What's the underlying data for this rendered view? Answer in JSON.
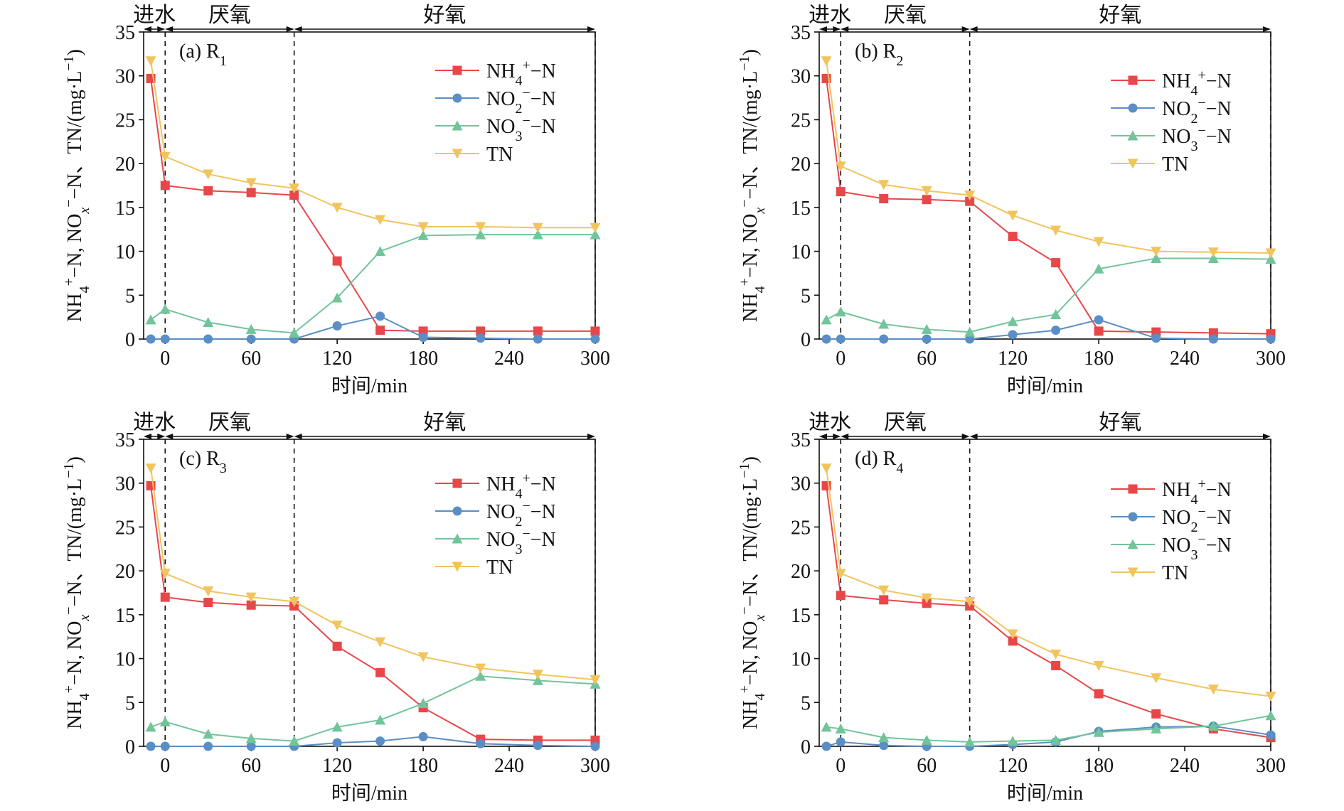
{
  "chart_data": [
    {
      "type": "line",
      "panel_label": "(a)",
      "reactor": "R",
      "reactor_sub": "1",
      "xlabel": "时间/min",
      "ylabel_parts": [
        "NH",
        "4",
        "+",
        "−N, NO",
        "x",
        "−",
        "−N、TN/(mg·L",
        "−1",
        ")"
      ],
      "xlim": [
        -15,
        300
      ],
      "ylim": [
        0,
        35
      ],
      "xticks": [
        0,
        60,
        120,
        180,
        240,
        300
      ],
      "yticks": [
        0,
        5,
        10,
        15,
        20,
        25,
        30,
        35
      ],
      "phases": [
        {
          "label": "进水",
          "start": -15,
          "end": 0
        },
        {
          "label": "厌氧",
          "start": 0,
          "end": 90
        },
        {
          "label": "好氧",
          "start": 90,
          "end": 300
        }
      ],
      "legend_position": "upper-right",
      "series": [
        {
          "name": "NH4+−N",
          "name_parts": [
            "NH",
            "4",
            "+",
            "−N"
          ],
          "color": "#e8474a",
          "marker": "square",
          "x": [
            -10,
            0,
            30,
            60,
            90,
            120,
            150,
            180,
            220,
            260,
            300
          ],
          "y": [
            29.7,
            17.5,
            16.9,
            16.7,
            16.4,
            8.9,
            1.0,
            0.9,
            0.9,
            0.9,
            0.9
          ]
        },
        {
          "name": "NO2−−N",
          "name_parts": [
            "NO",
            "2",
            "−",
            "−N"
          ],
          "color": "#5b8ec4",
          "marker": "circle",
          "x": [
            -10,
            0,
            30,
            60,
            90,
            120,
            150,
            180,
            220,
            260,
            300
          ],
          "y": [
            0.0,
            0.0,
            0.0,
            0.0,
            0.0,
            1.5,
            2.6,
            0.2,
            0.1,
            0.0,
            0.0
          ]
        },
        {
          "name": "NO3−−N",
          "name_parts": [
            "NO",
            "3",
            "−",
            "−N"
          ],
          "color": "#72c49a",
          "marker": "triangle-up",
          "x": [
            -10,
            0,
            30,
            60,
            90,
            120,
            150,
            180,
            220,
            260,
            300
          ],
          "y": [
            2.2,
            3.4,
            1.9,
            1.1,
            0.7,
            4.7,
            10.0,
            11.8,
            11.9,
            11.9,
            11.9
          ]
        },
        {
          "name": "TN",
          "name_parts": [
            "TN",
            "",
            "",
            ""
          ],
          "color": "#f2c45e",
          "marker": "triangle-down",
          "x": [
            -10,
            0,
            30,
            60,
            90,
            120,
            150,
            180,
            220,
            260,
            300
          ],
          "y": [
            31.7,
            20.8,
            18.8,
            17.8,
            17.2,
            15.0,
            13.6,
            12.8,
            12.8,
            12.7,
            12.7
          ]
        }
      ]
    },
    {
      "type": "line",
      "panel_label": "(b)",
      "reactor": "R",
      "reactor_sub": "2",
      "xlabel": "时间/min",
      "ylabel_parts": [
        "NH",
        "4",
        "+",
        "−N, NO",
        "x",
        "−",
        "−N、TN/(mg·L",
        "−1",
        ")"
      ],
      "xlim": [
        -15,
        300
      ],
      "ylim": [
        0,
        35
      ],
      "xticks": [
        0,
        60,
        120,
        180,
        240,
        300
      ],
      "yticks": [
        0,
        5,
        10,
        15,
        20,
        25,
        30,
        35
      ],
      "phases": [
        {
          "label": "进水",
          "start": -15,
          "end": 0
        },
        {
          "label": "厌氧",
          "start": 0,
          "end": 90
        },
        {
          "label": "好氧",
          "start": 90,
          "end": 300
        }
      ],
      "legend_position": "upper-right",
      "series": [
        {
          "name": "NH4+−N",
          "name_parts": [
            "NH",
            "4",
            "+",
            "−N"
          ],
          "color": "#e8474a",
          "marker": "square",
          "x": [
            -10,
            0,
            30,
            60,
            90,
            120,
            150,
            180,
            220,
            260,
            300
          ],
          "y": [
            29.7,
            16.8,
            16.0,
            15.9,
            15.7,
            11.7,
            8.7,
            0.9,
            0.8,
            0.7,
            0.6
          ]
        },
        {
          "name": "NO2−−N",
          "name_parts": [
            "NO",
            "2",
            "−",
            "−N"
          ],
          "color": "#5b8ec4",
          "marker": "circle",
          "x": [
            -10,
            0,
            30,
            60,
            90,
            120,
            150,
            180,
            220,
            260,
            300
          ],
          "y": [
            0.0,
            0.0,
            0.0,
            0.0,
            0.0,
            0.5,
            1.0,
            2.2,
            0.1,
            0.0,
            0.0
          ]
        },
        {
          "name": "NO3−−N",
          "name_parts": [
            "NO",
            "3",
            "−",
            "−N"
          ],
          "color": "#72c49a",
          "marker": "triangle-up",
          "x": [
            -10,
            0,
            30,
            60,
            90,
            120,
            150,
            180,
            220,
            260,
            300
          ],
          "y": [
            2.2,
            3.1,
            1.7,
            1.1,
            0.8,
            2.0,
            2.8,
            8.0,
            9.2,
            9.2,
            9.1
          ]
        },
        {
          "name": "TN",
          "name_parts": [
            "TN",
            "",
            "",
            ""
          ],
          "color": "#f2c45e",
          "marker": "triangle-down",
          "x": [
            -10,
            0,
            30,
            60,
            90,
            120,
            150,
            180,
            220,
            260,
            300
          ],
          "y": [
            31.7,
            19.7,
            17.6,
            16.9,
            16.4,
            14.1,
            12.4,
            11.1,
            10.0,
            9.9,
            9.8
          ]
        }
      ]
    },
    {
      "type": "line",
      "panel_label": "(c)",
      "reactor": "R",
      "reactor_sub": "3",
      "xlabel": "时间/min",
      "ylabel_parts": [
        "NH",
        "4",
        "+",
        "−N, NO",
        "x",
        "−",
        "−N、TN/(mg·L",
        "−1",
        ")"
      ],
      "xlim": [
        -15,
        300
      ],
      "ylim": [
        0,
        35
      ],
      "xticks": [
        0,
        60,
        120,
        180,
        240,
        300
      ],
      "yticks": [
        0,
        5,
        10,
        15,
        20,
        25,
        30,
        35
      ],
      "phases": [
        {
          "label": "进水",
          "start": -15,
          "end": 0
        },
        {
          "label": "厌氧",
          "start": 0,
          "end": 90
        },
        {
          "label": "好氧",
          "start": 90,
          "end": 300
        }
      ],
      "legend_position": "upper-right",
      "series": [
        {
          "name": "NH4+−N",
          "name_parts": [
            "NH",
            "4",
            "+",
            "−N"
          ],
          "color": "#e8474a",
          "marker": "square",
          "x": [
            -10,
            0,
            30,
            60,
            90,
            120,
            150,
            180,
            220,
            260,
            300
          ],
          "y": [
            29.7,
            17.0,
            16.4,
            16.1,
            16.0,
            11.4,
            8.4,
            4.4,
            0.8,
            0.7,
            0.7
          ]
        },
        {
          "name": "NO2−−N",
          "name_parts": [
            "NO",
            "2",
            "−",
            "−N"
          ],
          "color": "#5b8ec4",
          "marker": "circle",
          "x": [
            -10,
            0,
            30,
            60,
            90,
            120,
            150,
            180,
            220,
            260,
            300
          ],
          "y": [
            0.0,
            0.0,
            0.0,
            0.0,
            0.0,
            0.4,
            0.6,
            1.1,
            0.3,
            0.1,
            0.0
          ]
        },
        {
          "name": "NO3−−N",
          "name_parts": [
            "NO",
            "3",
            "−",
            "−N"
          ],
          "color": "#72c49a",
          "marker": "triangle-up",
          "x": [
            -10,
            0,
            30,
            60,
            90,
            120,
            150,
            180,
            220,
            260,
            300
          ],
          "y": [
            2.2,
            2.8,
            1.4,
            0.9,
            0.6,
            2.2,
            3.0,
            4.9,
            8.0,
            7.5,
            7.1
          ]
        },
        {
          "name": "TN",
          "name_parts": [
            "TN",
            "",
            "",
            ""
          ],
          "color": "#f2c45e",
          "marker": "triangle-down",
          "x": [
            -10,
            0,
            30,
            60,
            90,
            120,
            150,
            180,
            220,
            260,
            300
          ],
          "y": [
            31.7,
            19.7,
            17.7,
            17.0,
            16.5,
            13.8,
            11.9,
            10.2,
            8.9,
            8.2,
            7.6
          ]
        }
      ]
    },
    {
      "type": "line",
      "panel_label": "(d)",
      "reactor": "R",
      "reactor_sub": "4",
      "xlabel": "时间/min",
      "ylabel_parts": [
        "NH",
        "4",
        "+",
        "−N, NO",
        "x",
        "−",
        "−N、TN/(mg·L",
        "−1",
        ")"
      ],
      "xlim": [
        -15,
        300
      ],
      "ylim": [
        0,
        35
      ],
      "xticks": [
        0,
        60,
        120,
        180,
        240,
        300
      ],
      "yticks": [
        0,
        5,
        10,
        15,
        20,
        25,
        30,
        35
      ],
      "phases": [
        {
          "label": "进水",
          "start": -15,
          "end": 0
        },
        {
          "label": "厌氧",
          "start": 0,
          "end": 90
        },
        {
          "label": "好氧",
          "start": 90,
          "end": 300
        }
      ],
      "legend_position": "upper-right",
      "series": [
        {
          "name": "NH4+−N",
          "name_parts": [
            "NH",
            "4",
            "+",
            "−N"
          ],
          "color": "#e8474a",
          "marker": "square",
          "x": [
            -10,
            0,
            30,
            60,
            90,
            120,
            150,
            180,
            220,
            260,
            300
          ],
          "y": [
            29.7,
            17.2,
            16.7,
            16.3,
            16.0,
            12.0,
            9.2,
            6.0,
            3.7,
            2.0,
            1.0
          ]
        },
        {
          "name": "NO2−−N",
          "name_parts": [
            "NO",
            "2",
            "−",
            "−N"
          ],
          "color": "#5b8ec4",
          "marker": "circle",
          "x": [
            -10,
            0,
            30,
            60,
            90,
            120,
            150,
            180,
            220,
            260,
            300
          ],
          "y": [
            0.0,
            0.5,
            0.1,
            0.0,
            0.0,
            0.2,
            0.5,
            1.7,
            2.2,
            2.3,
            1.3
          ]
        },
        {
          "name": "NO3−−N",
          "name_parts": [
            "NO",
            "3",
            "−",
            "−N"
          ],
          "color": "#72c49a",
          "marker": "triangle-up",
          "x": [
            -10,
            0,
            30,
            60,
            90,
            120,
            150,
            180,
            220,
            260,
            300
          ],
          "y": [
            2.2,
            2.0,
            1.0,
            0.7,
            0.5,
            0.6,
            0.7,
            1.6,
            2.0,
            2.3,
            3.5
          ]
        },
        {
          "name": "TN",
          "name_parts": [
            "TN",
            "",
            "",
            ""
          ],
          "color": "#f2c45e",
          "marker": "triangle-down",
          "x": [
            -10,
            0,
            30,
            60,
            90,
            120,
            150,
            180,
            220,
            260,
            300
          ],
          "y": [
            31.7,
            19.7,
            17.8,
            16.9,
            16.5,
            12.8,
            10.5,
            9.2,
            7.8,
            6.5,
            5.7
          ]
        }
      ]
    }
  ]
}
